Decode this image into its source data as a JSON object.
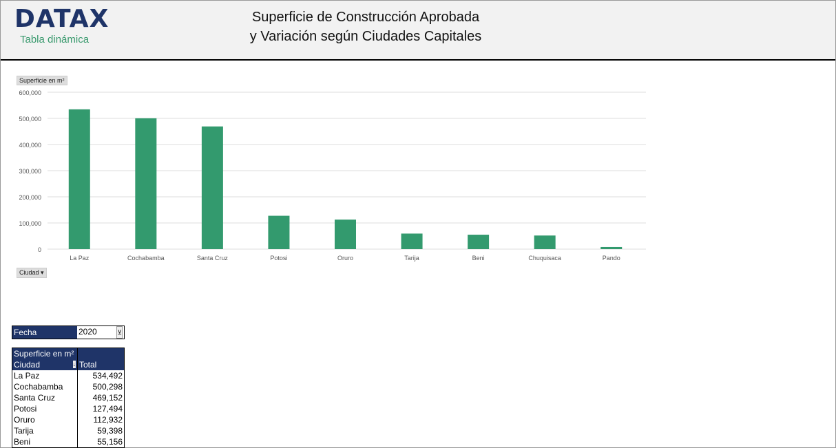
{
  "header": {
    "logo": "DATAX",
    "subtitle": "Tabla dinámica",
    "title_line1": "Superficie de Construcción Aprobada",
    "title_line2": "y Variación según Ciudades Capitales"
  },
  "chart_data": {
    "type": "bar",
    "ylabel_button": "Superficie en m²",
    "xaxis_button": "Ciudad",
    "categories": [
      "La Paz",
      "Cochabamba",
      "Santa Cruz",
      "Potosi",
      "Oruro",
      "Tarija",
      "Beni",
      "Chuquisaca",
      "Pando"
    ],
    "values": [
      534492,
      500298,
      469152,
      127494,
      112932,
      59398,
      55156,
      52000,
      8000
    ],
    "ylim": [
      0,
      600000
    ],
    "yticks": [
      "0",
      "100,000",
      "200,000",
      "300,000",
      "400,000",
      "500,000",
      "600,000"
    ],
    "grid": true,
    "color": "#339a6e"
  },
  "filter": {
    "label": "Fecha",
    "value": "2020"
  },
  "pivot": {
    "measure": "Superficie en m²",
    "row_header": "Ciudad",
    "col_header": "Total",
    "rows": [
      [
        "La Paz",
        "534,492"
      ],
      [
        "Cochabamba",
        "500,298"
      ],
      [
        "Santa Cruz",
        "469,152"
      ],
      [
        "Potosi",
        "127,494"
      ],
      [
        "Oruro",
        "112,932"
      ],
      [
        "Tarija",
        "59,398"
      ],
      [
        "Beni",
        "55,156"
      ]
    ]
  }
}
